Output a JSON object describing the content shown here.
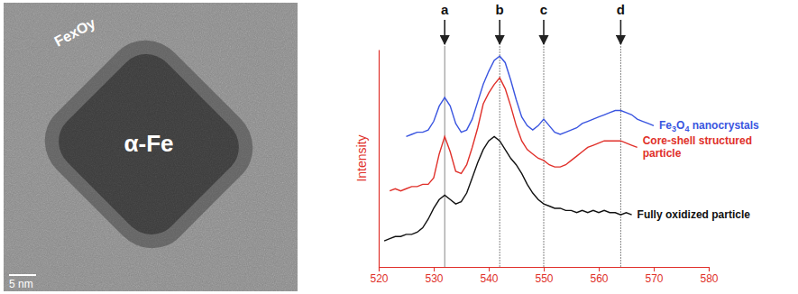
{
  "image": {
    "shell_label": "FexOy",
    "core_label": "α-Fe",
    "scale_label": "5 nm"
  },
  "chart_data": {
    "type": "line",
    "y_label": "Intensity",
    "xlim": [
      520,
      580
    ],
    "xticks": [
      520,
      530,
      540,
      550,
      560,
      570,
      580
    ],
    "ylim": [
      0,
      100
    ],
    "tick_labels": "x",
    "annotations": [
      {
        "label": "a",
        "x": 532
      },
      {
        "label": "b",
        "x": 542
      },
      {
        "label": "c",
        "x": 550
      },
      {
        "label": "d",
        "x": 564
      }
    ],
    "series": [
      {
        "name": "Fe3O4 nanocrystals",
        "color": "#3a55e0",
        "x": [
          525,
          526,
          527,
          528,
          529,
          530,
          531,
          532,
          533,
          534,
          535,
          536,
          537,
          538,
          539,
          540,
          541,
          542,
          543,
          544,
          545,
          546,
          547,
          548,
          549,
          550,
          551,
          552,
          553,
          554,
          555,
          556,
          557,
          558,
          559,
          560,
          561,
          562,
          563,
          564,
          565,
          566,
          567,
          568,
          569,
          570
        ],
        "values": [
          60,
          61,
          62,
          62,
          63,
          67,
          74,
          78,
          74,
          66,
          62,
          63,
          68,
          76,
          84,
          90,
          95,
          97,
          94,
          86,
          77,
          69,
          65,
          63,
          65,
          68,
          65,
          62,
          61,
          62,
          63,
          64,
          66,
          67,
          68,
          69,
          70,
          71,
          72,
          72,
          71,
          70,
          68,
          67,
          66,
          65
        ]
      },
      {
        "name": "Core-shell structured particle",
        "color": "#e0302a",
        "x": [
          522,
          523,
          524,
          525,
          526,
          527,
          528,
          529,
          530,
          531,
          532,
          533,
          534,
          535,
          536,
          537,
          538,
          539,
          540,
          541,
          542,
          543,
          544,
          545,
          546,
          547,
          548,
          549,
          550,
          551,
          552,
          553,
          554,
          555,
          556,
          557,
          558,
          559,
          560,
          561,
          562,
          563,
          564,
          565,
          566,
          567
        ],
        "values": [
          35,
          36,
          35,
          36,
          37,
          37,
          38,
          38,
          41,
          52,
          60,
          53,
          44,
          43,
          47,
          55,
          64,
          75,
          80,
          84,
          87,
          82,
          74,
          65,
          58,
          54,
          52,
          50,
          49,
          47,
          46,
          46,
          47,
          49,
          51,
          53,
          55,
          56,
          57,
          58,
          58,
          58,
          58,
          57,
          56,
          55
        ]
      },
      {
        "name": "Fully oxidized particle",
        "color": "#111111",
        "x": [
          521,
          522,
          523,
          524,
          525,
          526,
          527,
          528,
          529,
          530,
          531,
          532,
          533,
          534,
          535,
          536,
          537,
          538,
          539,
          540,
          541,
          542,
          543,
          544,
          545,
          546,
          547,
          548,
          549,
          550,
          551,
          552,
          553,
          554,
          555,
          556,
          557,
          558,
          559,
          560,
          561,
          562,
          563,
          564,
          565,
          566
        ],
        "values": [
          12,
          13,
          14,
          14,
          15,
          15,
          16,
          18,
          22,
          27,
          31,
          33,
          31,
          29,
          30,
          34,
          41,
          48,
          54,
          58,
          60,
          58,
          54,
          50,
          47,
          43,
          38,
          34,
          31,
          29,
          28,
          27,
          27,
          26,
          26,
          25,
          26,
          25,
          26,
          25,
          26,
          25,
          25,
          24,
          25,
          24
        ]
      }
    ]
  }
}
